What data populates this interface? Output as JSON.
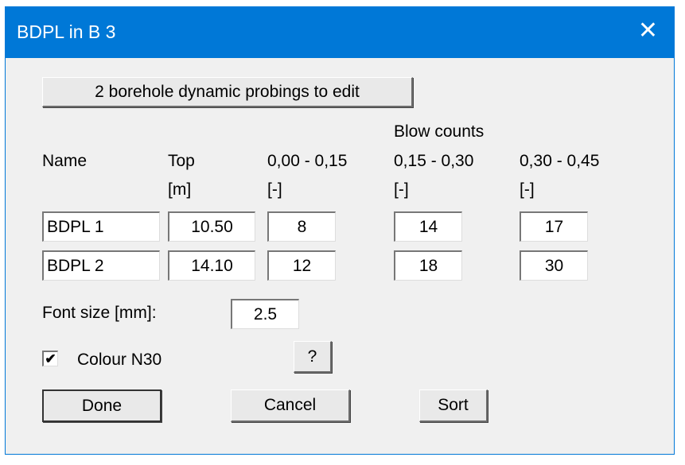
{
  "window": {
    "title": "BDPL in B 3",
    "close_icon": "close-icon"
  },
  "edit_button": "2 borehole dynamic probings to edit",
  "headers": {
    "name": "Name",
    "top": "Top",
    "top_unit": "[m]",
    "blow_counts": "Blow counts",
    "c1": "0,00 - 0,15",
    "c2": "0,15 - 0,30",
    "c3": "0,30 - 0,45",
    "unit": "[-]"
  },
  "rows": [
    {
      "name": "BDPL 1",
      "top": "10.50",
      "c1": "8",
      "c2": "14",
      "c3": "17"
    },
    {
      "name": "BDPL 2",
      "top": "14.10",
      "c1": "12",
      "c2": "18",
      "c3": "30"
    }
  ],
  "font_size": {
    "label": "Font size [mm]:",
    "value": "2.5"
  },
  "colour": {
    "label": "Colour N30",
    "checked": true
  },
  "buttons": {
    "help": "?",
    "done": "Done",
    "cancel": "Cancel",
    "sort": "Sort"
  }
}
